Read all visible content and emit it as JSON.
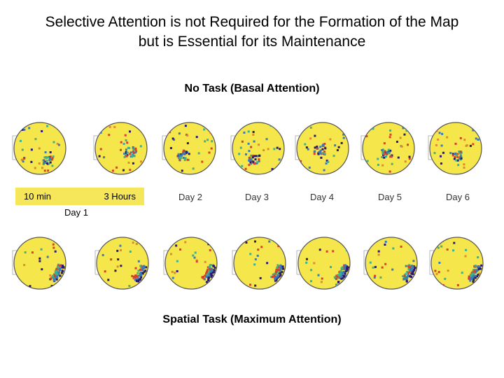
{
  "title": {
    "line1": "Selective Attention is not Required for the Formation of the Map",
    "line2": "but is Essential for its Maintenance"
  },
  "conditions": {
    "no_task": "No Task (Basal Attention)",
    "spatial_task": "Spatial Task (Maximum Attention)"
  },
  "time_labels": {
    "ten_min": "10 min",
    "three_hours": "3 Hours",
    "day1": "Day 1",
    "day2": "Day 2",
    "day3": "Day 3",
    "day4": "Day 4",
    "day5": "Day 5",
    "day6": "Day 6"
  },
  "colors": {
    "arena_fill": "#f5e64c",
    "arena_edge": "#555555",
    "field_high": "#2a1a6e",
    "field_mid": "#3a7ab8",
    "field_low": "#3fb08a",
    "hot": "#d8402a",
    "label_bg": "#f6e65a"
  }
}
